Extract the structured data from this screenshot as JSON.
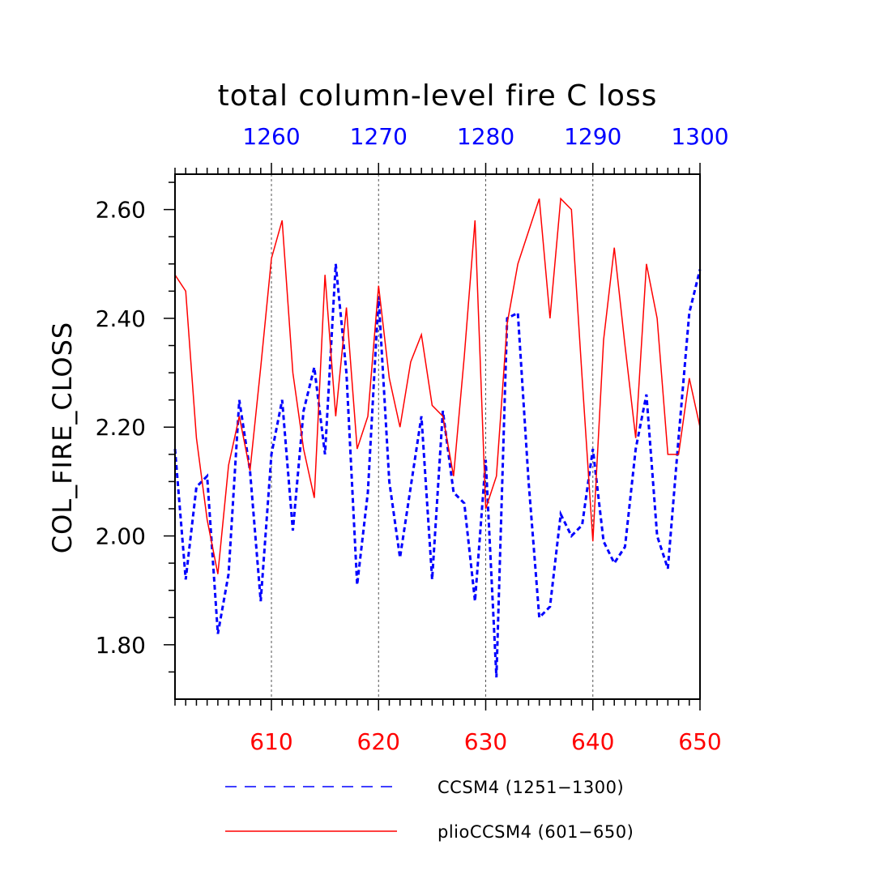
{
  "chart_data": {
    "type": "line",
    "title": "total column-level fire C loss",
    "ylabel": "COL_FIRE_CLOSS",
    "ylim": [
      1.7,
      2.665
    ],
    "y_ticks": [
      "1.80",
      "2.00",
      "2.20",
      "2.40",
      "2.60"
    ],
    "y_tick_values": [
      1.8,
      2.0,
      2.2,
      2.4,
      2.6
    ],
    "x_bottom": {
      "range": [
        601,
        650
      ],
      "ticks": [
        "610",
        "620",
        "630",
        "640",
        "650"
      ],
      "tick_values": [
        610,
        620,
        630,
        640,
        650
      ],
      "color": "#ff0000"
    },
    "x_top": {
      "range": [
        1251,
        1300
      ],
      "ticks": [
        "1260",
        "1270",
        "1280",
        "1290",
        "1300"
      ],
      "tick_values": [
        1260,
        1270,
        1280,
        1290,
        1300
      ],
      "color": "#0000ff"
    },
    "vertical_gridlines_at_bottom_x": [
      610,
      620,
      630,
      640
    ],
    "series": [
      {
        "name": "CCSM4 (1251-1300)",
        "color": "#0000ff",
        "style": "dashed",
        "axis": "top",
        "x": [
          1251,
          1252,
          1253,
          1254,
          1255,
          1256,
          1257,
          1258,
          1259,
          1260,
          1261,
          1262,
          1263,
          1264,
          1265,
          1266,
          1267,
          1268,
          1269,
          1270,
          1271,
          1272,
          1273,
          1274,
          1275,
          1276,
          1277,
          1278,
          1279,
          1280,
          1281,
          1282,
          1283,
          1284,
          1285,
          1286,
          1287,
          1288,
          1289,
          1290,
          1291,
          1292,
          1293,
          1294,
          1295,
          1296,
          1297,
          1298,
          1299,
          1300
        ],
        "values": [
          2.16,
          1.92,
          2.09,
          2.11,
          1.82,
          1.93,
          2.25,
          2.12,
          1.88,
          2.15,
          2.25,
          2.01,
          2.23,
          2.31,
          2.15,
          2.5,
          2.3,
          1.91,
          2.08,
          2.44,
          2.1,
          1.96,
          2.09,
          2.22,
          1.92,
          2.23,
          2.08,
          2.06,
          1.88,
          2.14,
          1.74,
          2.4,
          2.41,
          2.1,
          1.85,
          1.87,
          2.04,
          2.0,
          2.02,
          2.16,
          1.99,
          1.95,
          1.98,
          2.16,
          2.26,
          2.0,
          1.94,
          2.18,
          2.41,
          2.49
        ]
      },
      {
        "name": "plioCCSM4 (601-650)",
        "color": "#ff0000",
        "style": "solid",
        "axis": "bottom",
        "x": [
          601,
          602,
          603,
          604,
          605,
          606,
          607,
          608,
          609,
          610,
          611,
          612,
          613,
          614,
          615,
          616,
          617,
          618,
          619,
          620,
          621,
          622,
          623,
          624,
          625,
          626,
          627,
          628,
          629,
          630,
          631,
          632,
          633,
          634,
          635,
          636,
          637,
          638,
          639,
          640,
          641,
          642,
          643,
          644,
          645,
          646,
          647,
          648,
          649,
          650
        ],
        "values": [
          2.48,
          2.45,
          2.18,
          2.03,
          1.93,
          2.13,
          2.22,
          2.12,
          2.31,
          2.51,
          2.58,
          2.3,
          2.16,
          2.07,
          2.48,
          2.22,
          2.42,
          2.16,
          2.22,
          2.46,
          2.29,
          2.2,
          2.32,
          2.37,
          2.24,
          2.22,
          2.11,
          2.33,
          2.58,
          2.05,
          2.11,
          2.39,
          2.5,
          2.56,
          2.62,
          2.4,
          2.62,
          2.6,
          2.29,
          1.99,
          2.36,
          2.53,
          2.35,
          2.18,
          2.5,
          2.4,
          2.15,
          2.15,
          2.29,
          2.2
        ]
      }
    ],
    "legend": {
      "placement": "bottom",
      "entries": [
        "CCSM4 (1251−1300)",
        "plioCCSM4 (601−650)"
      ]
    }
  }
}
